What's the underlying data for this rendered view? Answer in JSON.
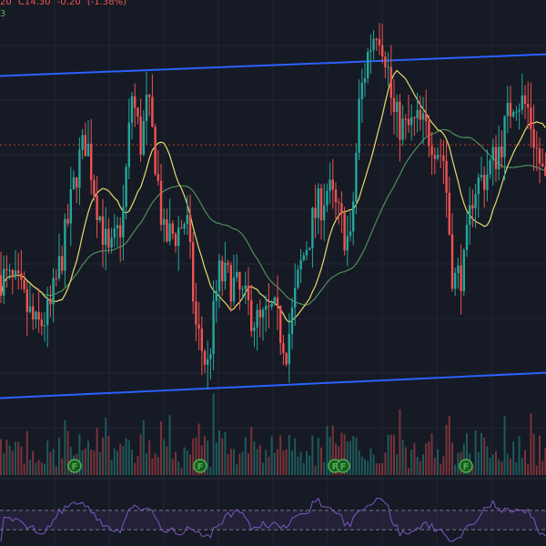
{
  "legend": {
    "open_fragment": "20",
    "close": "C14.30",
    "change": "-0.20",
    "change_pct": "(-1.38%)",
    "ma_fragment": "3"
  },
  "colors": {
    "background": "#161a25",
    "grid": "#232734",
    "up": "#26a69a",
    "down": "#ef5350",
    "ma_fast": "#e6dc6b",
    "ma_slow": "#4f8f5a",
    "channel": "#2962ff",
    "ref_line": "#c0392b",
    "rsi": "#7e57c2",
    "earnings_badge": "#1b5e20",
    "earnings_text": "#4caf50"
  },
  "chart_data": {
    "type": "candlestick",
    "y_range": [
      10.3,
      16.9
    ],
    "reference_level": 14.9,
    "channel_upper": [
      [
        0,
        15.85
      ],
      [
        600,
        16.15
      ]
    ],
    "channel_lower": [
      [
        0,
        11.4
      ],
      [
        600,
        11.75
      ]
    ],
    "price_path": [
      [
        0,
        13.1
      ],
      [
        20,
        12.9
      ],
      [
        40,
        12.35
      ],
      [
        55,
        12.6
      ],
      [
        70,
        13.5
      ],
      [
        85,
        14.6
      ],
      [
        95,
        15.0
      ],
      [
        105,
        14.2
      ],
      [
        120,
        13.3
      ],
      [
        135,
        13.9
      ],
      [
        145,
        15.6
      ],
      [
        155,
        14.9
      ],
      [
        162,
        15.5
      ],
      [
        170,
        14.8
      ],
      [
        180,
        13.6
      ],
      [
        195,
        13.7
      ],
      [
        205,
        13.9
      ],
      [
        215,
        12.4
      ],
      [
        228,
        11.8
      ],
      [
        240,
        13.1
      ],
      [
        255,
        13.0
      ],
      [
        270,
        12.7
      ],
      [
        285,
        12.4
      ],
      [
        300,
        12.6
      ],
      [
        315,
        12.1
      ],
      [
        330,
        13.2
      ],
      [
        345,
        13.9
      ],
      [
        360,
        14.3
      ],
      [
        375,
        13.8
      ],
      [
        385,
        13.5
      ],
      [
        395,
        15.5
      ],
      [
        405,
        16.2
      ],
      [
        415,
        16.6
      ],
      [
        425,
        16.1
      ],
      [
        432,
        15.3
      ],
      [
        445,
        15.1
      ],
      [
        460,
        15.2
      ],
      [
        475,
        15.0
      ],
      [
        488,
        14.7
      ],
      [
        498,
        13.0
      ],
      [
        510,
        13.2
      ],
      [
        520,
        14.3
      ],
      [
        535,
        14.5
      ],
      [
        550,
        14.9
      ],
      [
        565,
        15.6
      ],
      [
        580,
        15.4
      ],
      [
        590,
        14.8
      ],
      [
        600,
        14.3
      ]
    ],
    "earnings_marker_label": "F",
    "earnings_marker_x": [
      82,
      220,
      368,
      377,
      512
    ],
    "volume_max": 1.0,
    "rsi_range": [
      0,
      100
    ],
    "rsi_levels": [
      70,
      30
    ]
  }
}
